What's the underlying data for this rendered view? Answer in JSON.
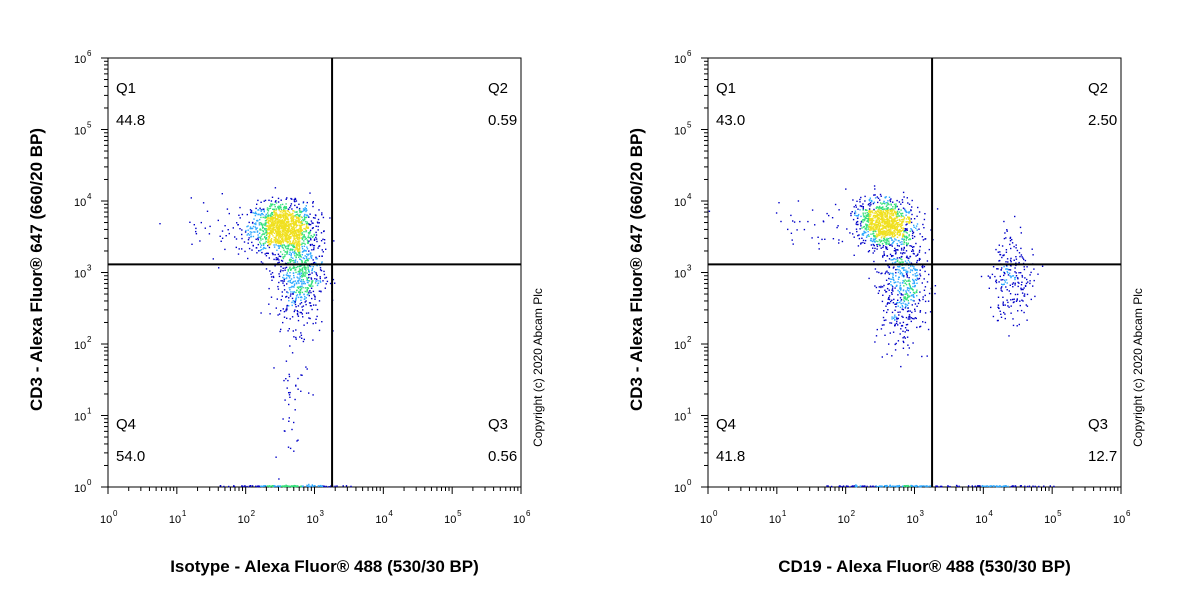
{
  "chart_data": [
    {
      "type": "scatter",
      "subtype": "flow-cytometry-quadrant-dot-plot",
      "title": "",
      "xlabel": "Isotype - Alexa Fluor® 488 (530/30 BP)",
      "ylabel": "CD3 - Alexa Fluor® 647 (660/20 BP)",
      "x_scale": "log",
      "y_scale": "log",
      "xlim": [
        1,
        1000000
      ],
      "ylim": [
        1,
        1000000
      ],
      "x_ticks": [
        {
          "base": "10",
          "exp": "0",
          "value": 1
        },
        {
          "base": "10",
          "exp": "1",
          "value": 10
        },
        {
          "base": "10",
          "exp": "2",
          "value": 100
        },
        {
          "base": "10",
          "exp": "3",
          "value": 1000
        },
        {
          "base": "10",
          "exp": "4",
          "value": 10000
        },
        {
          "base": "10",
          "exp": "5",
          "value": 100000
        },
        {
          "base": "10",
          "exp": "6",
          "value": 1000000
        }
      ],
      "y_ticks": [
        {
          "base": "10",
          "exp": "0",
          "value": 1
        },
        {
          "base": "10",
          "exp": "1",
          "value": 10
        },
        {
          "base": "10",
          "exp": "2",
          "value": 100
        },
        {
          "base": "10",
          "exp": "3",
          "value": 1000
        },
        {
          "base": "10",
          "exp": "4",
          "value": 10000
        },
        {
          "base": "10",
          "exp": "5",
          "value": 100000
        },
        {
          "base": "10",
          "exp": "6",
          "value": 1000000
        }
      ],
      "gate": {
        "x": 1800,
        "y": 1300
      },
      "quadrants": [
        {
          "name": "Q1",
          "percent": "44.8",
          "position": "top-left"
        },
        {
          "name": "Q2",
          "percent": "0.59",
          "position": "top-right"
        },
        {
          "name": "Q3",
          "percent": "0.56",
          "position": "bottom-right"
        },
        {
          "name": "Q4",
          "percent": "54.0",
          "position": "bottom-left"
        }
      ],
      "populations": [
        {
          "x": 330,
          "y": 4200,
          "sx": 0.22,
          "sy": 0.17,
          "n": 1200
        },
        {
          "x": 600,
          "y": 1000,
          "sx": 0.17,
          "sy": 0.38,
          "n": 650
        },
        {
          "x": 80,
          "y": 4000,
          "sx": 0.5,
          "sy": 0.2,
          "n": 70
        },
        {
          "x": 450,
          "y": 20,
          "sx": 0.12,
          "sy": 0.5,
          "n": 45
        },
        {
          "x": 400,
          "y": 1,
          "sx": 0.35,
          "sy": 0.008,
          "n": 140
        }
      ],
      "copyright": "Copyright (c) 2020 Abcam Plc"
    },
    {
      "type": "scatter",
      "subtype": "flow-cytometry-quadrant-dot-plot",
      "title": "",
      "xlabel": "CD19 - Alexa Fluor® 488 (530/30 BP)",
      "ylabel": "CD3 - Alexa Fluor® 647 (660/20 BP)",
      "x_scale": "log",
      "y_scale": "log",
      "xlim": [
        1,
        1000000
      ],
      "ylim": [
        1,
        1000000
      ],
      "x_ticks": [
        {
          "base": "10",
          "exp": "0",
          "value": 1
        },
        {
          "base": "10",
          "exp": "1",
          "value": 10
        },
        {
          "base": "10",
          "exp": "2",
          "value": 100
        },
        {
          "base": "10",
          "exp": "3",
          "value": 1000
        },
        {
          "base": "10",
          "exp": "4",
          "value": 10000
        },
        {
          "base": "10",
          "exp": "5",
          "value": 100000
        },
        {
          "base": "10",
          "exp": "6",
          "value": 1000000
        }
      ],
      "y_ticks": [
        {
          "base": "10",
          "exp": "0",
          "value": 1
        },
        {
          "base": "10",
          "exp": "1",
          "value": 10
        },
        {
          "base": "10",
          "exp": "2",
          "value": 100
        },
        {
          "base": "10",
          "exp": "3",
          "value": 1000
        },
        {
          "base": "10",
          "exp": "4",
          "value": 10000
        },
        {
          "base": "10",
          "exp": "5",
          "value": 100000
        },
        {
          "base": "10",
          "exp": "6",
          "value": 1000000
        }
      ],
      "gate": {
        "x": 1800,
        "y": 1300
      },
      "quadrants": [
        {
          "name": "Q1",
          "percent": "43.0",
          "position": "top-left"
        },
        {
          "name": "Q2",
          "percent": "2.50",
          "position": "top-right"
        },
        {
          "name": "Q3",
          "percent": "12.7",
          "position": "bottom-right"
        },
        {
          "name": "Q4",
          "percent": "41.8",
          "position": "bottom-left"
        }
      ],
      "populations": [
        {
          "x": 370,
          "y": 4800,
          "sx": 0.2,
          "sy": 0.16,
          "n": 1000
        },
        {
          "x": 650,
          "y": 700,
          "sx": 0.17,
          "sy": 0.4,
          "n": 550
        },
        {
          "x": 25000,
          "y": 800,
          "sx": 0.17,
          "sy": 0.3,
          "n": 230
        },
        {
          "x": 80,
          "y": 5000,
          "sx": 0.45,
          "sy": 0.2,
          "n": 60
        },
        {
          "x": 500,
          "y": 1,
          "sx": 0.45,
          "sy": 0.008,
          "n": 130
        },
        {
          "x": 15000,
          "y": 1,
          "sx": 0.3,
          "sy": 0.008,
          "n": 60
        }
      ],
      "copyright": "Copyright (c) 2020 Abcam Plc"
    }
  ],
  "colors": {
    "axis": "#000000",
    "density_low": "#0000c8",
    "density_mid": "#2ca8ff",
    "density_high": "#33e07a",
    "density_peak": "#f0e020"
  }
}
